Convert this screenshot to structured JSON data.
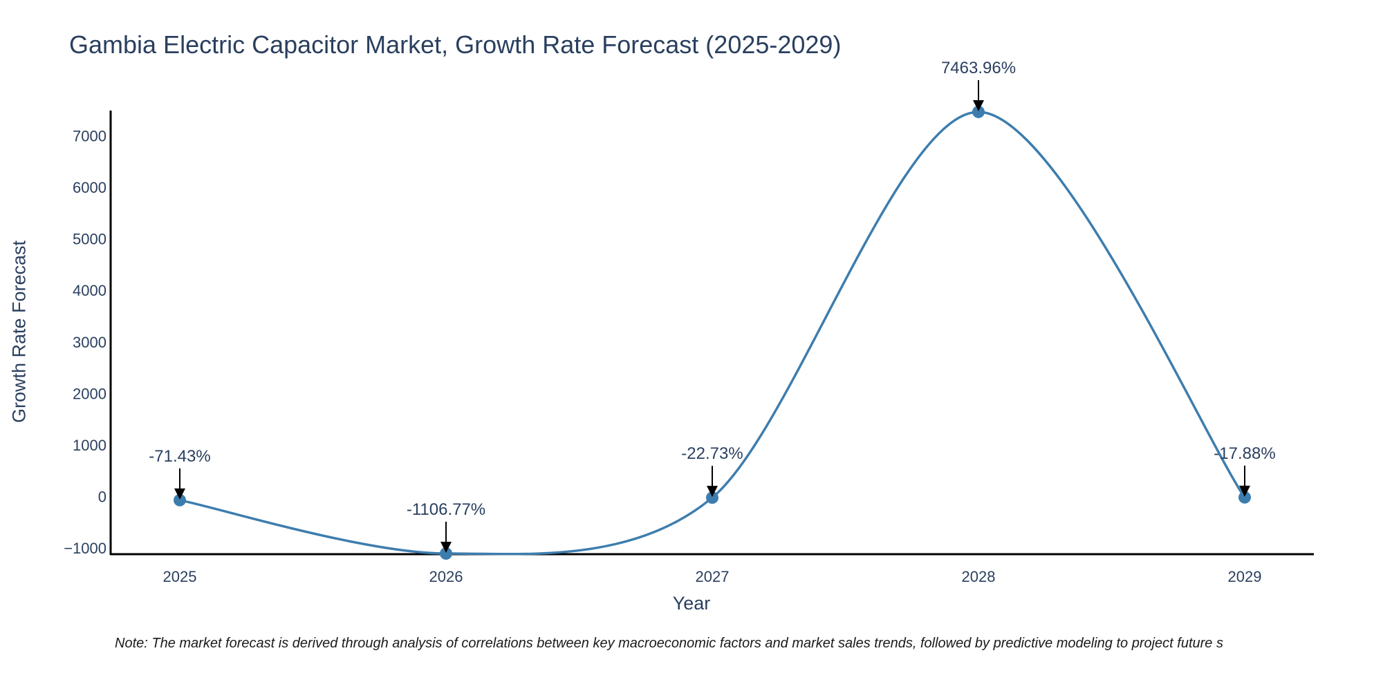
{
  "chart_data": {
    "type": "line",
    "title": "Gambia Electric Capacitor Market, Growth Rate Forecast (2025-2029)",
    "xlabel": "Year",
    "ylabel": "Growth Rate Forecast",
    "categories": [
      "2025",
      "2026",
      "2027",
      "2028",
      "2029"
    ],
    "values": [
      -71.43,
      -1106.77,
      -22.73,
      7463.96,
      -17.88
    ],
    "data_labels": [
      "-71.43%",
      "-1106.77%",
      "-22.73%",
      "7463.96%",
      "-17.88%"
    ],
    "yticks": [
      -1000,
      0,
      1000,
      2000,
      3000,
      4000,
      5000,
      6000,
      7000
    ],
    "ytick_labels": [
      "−1000",
      "0",
      "1000",
      "2000",
      "3000",
      "4000",
      "5000",
      "6000",
      "7000"
    ],
    "ylim": [
      -1120,
      7490
    ],
    "line_color": "#3d7dae",
    "grid": false
  },
  "note": "Note: The market forecast is derived through analysis of correlations between key macroeconomic factors and market sales trends, followed by predictive modeling to project future s"
}
